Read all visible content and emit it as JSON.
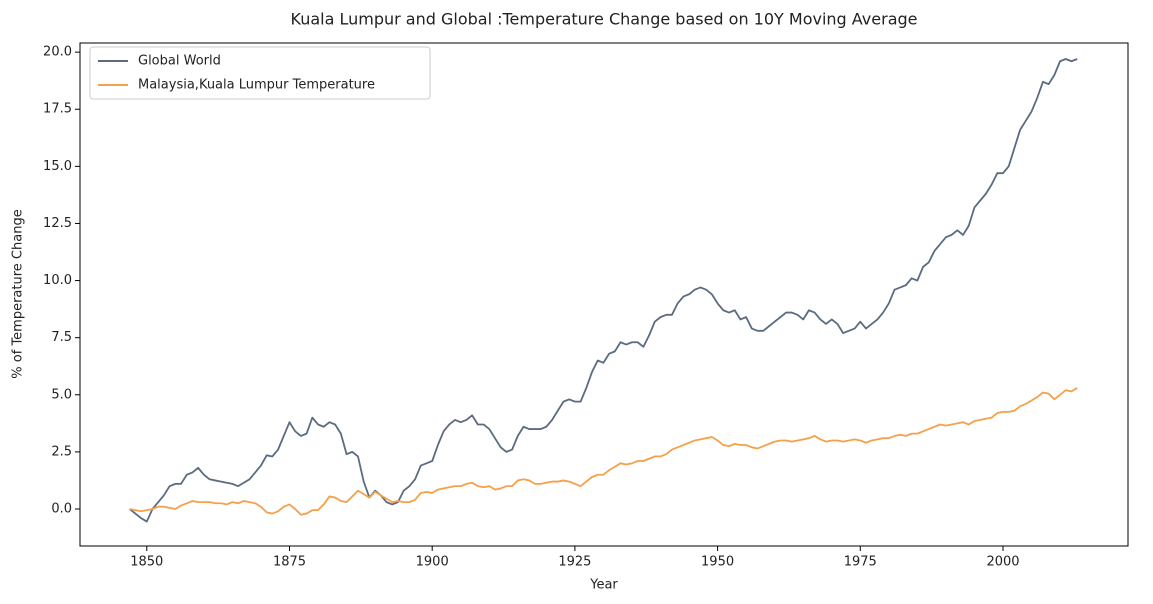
{
  "chart_data": {
    "type": "line",
    "title": "Kuala Lumpur and Global :Temperature Change based on 10Y Moving Average",
    "xlabel": "Year",
    "ylabel": "% of Temperature Change",
    "xlim": [
      1838.3,
      2021.9
    ],
    "ylim": [
      -1.62,
      20.4
    ],
    "xticks": [
      1850,
      1875,
      1900,
      1925,
      1950,
      1975,
      2000
    ],
    "yticks": [
      {
        "value": 0,
        "label": "0.0"
      },
      {
        "value": 2.5,
        "label": "2.5"
      },
      {
        "value": 5,
        "label": "5.0"
      },
      {
        "value": 7.5,
        "label": "7.5"
      },
      {
        "value": 10,
        "label": "10.0"
      },
      {
        "value": 12.5,
        "label": "12.5"
      },
      {
        "value": 15,
        "label": "15.0"
      },
      {
        "value": 17.5,
        "label": "17.5"
      },
      {
        "value": 20,
        "label": "20.0"
      }
    ],
    "grid": false,
    "legend": "upper left",
    "x": [
      1847,
      1848,
      1849,
      1850,
      1851,
      1852,
      1853,
      1854,
      1855,
      1856,
      1857,
      1858,
      1859,
      1860,
      1861,
      1862,
      1863,
      1864,
      1865,
      1866,
      1867,
      1868,
      1869,
      1870,
      1871,
      1872,
      1873,
      1874,
      1875,
      1876,
      1877,
      1878,
      1879,
      1880,
      1881,
      1882,
      1883,
      1884,
      1885,
      1886,
      1887,
      1888,
      1889,
      1890,
      1891,
      1892,
      1893,
      1894,
      1895,
      1896,
      1897,
      1898,
      1899,
      1900,
      1901,
      1902,
      1903,
      1904,
      1905,
      1906,
      1907,
      1908,
      1909,
      1910,
      1911,
      1912,
      1913,
      1914,
      1915,
      1916,
      1917,
      1918,
      1919,
      1920,
      1921,
      1922,
      1923,
      1924,
      1925,
      1926,
      1927,
      1928,
      1929,
      1930,
      1931,
      1932,
      1933,
      1934,
      1935,
      1936,
      1937,
      1938,
      1939,
      1940,
      1941,
      1942,
      1943,
      1944,
      1945,
      1946,
      1947,
      1948,
      1949,
      1950,
      1951,
      1952,
      1953,
      1954,
      1955,
      1956,
      1957,
      1958,
      1959,
      1960,
      1961,
      1962,
      1963,
      1964,
      1965,
      1966,
      1967,
      1968,
      1969,
      1970,
      1971,
      1972,
      1973,
      1974,
      1975,
      1976,
      1977,
      1978,
      1979,
      1980,
      1981,
      1982,
      1983,
      1984,
      1985,
      1986,
      1987,
      1988,
      1989,
      1990,
      1991,
      1992,
      1993,
      1994,
      1995,
      1996,
      1997,
      1998,
      1999,
      2000,
      2001,
      2002,
      2003,
      2004,
      2005,
      2006,
      2007,
      2008,
      2009,
      2010,
      2011,
      2012,
      2013
    ],
    "series": [
      {
        "name": "Global World",
        "color": "#5b6b80",
        "values": [
          0.0,
          -0.2,
          -0.4,
          -0.55,
          0.0,
          0.3,
          0.6,
          1.0,
          1.1,
          1.1,
          1.5,
          1.6,
          1.8,
          1.5,
          1.3,
          1.25,
          1.2,
          1.15,
          1.1,
          1.0,
          1.15,
          1.3,
          1.6,
          1.9,
          2.35,
          2.3,
          2.6,
          3.2,
          3.8,
          3.4,
          3.2,
          3.3,
          4.0,
          3.7,
          3.6,
          3.8,
          3.7,
          3.3,
          2.4,
          2.5,
          2.3,
          1.2,
          0.5,
          0.8,
          0.6,
          0.3,
          0.2,
          0.3,
          0.8,
          1.0,
          1.3,
          1.9,
          2.0,
          2.1,
          2.8,
          3.4,
          3.7,
          3.9,
          3.8,
          3.9,
          4.1,
          3.7,
          3.7,
          3.5,
          3.1,
          2.7,
          2.5,
          2.6,
          3.2,
          3.6,
          3.5,
          3.5,
          3.5,
          3.6,
          3.9,
          4.3,
          4.7,
          4.8,
          4.7,
          4.7,
          5.3,
          6.0,
          6.5,
          6.4,
          6.8,
          6.9,
          7.3,
          7.2,
          7.3,
          7.3,
          7.1,
          7.6,
          8.2,
          8.4,
          8.5,
          8.5,
          9.0,
          9.3,
          9.4,
          9.6,
          9.7,
          9.6,
          9.4,
          9.0,
          8.7,
          8.6,
          8.7,
          8.3,
          8.4,
          7.9,
          7.8,
          7.8,
          8.0,
          8.2,
          8.4,
          8.6,
          8.6,
          8.5,
          8.3,
          8.7,
          8.6,
          8.3,
          8.1,
          8.3,
          8.1,
          7.7,
          7.8,
          7.9,
          8.2,
          7.9,
          8.1,
          8.3,
          8.6,
          9.0,
          9.6,
          9.7,
          9.8,
          10.1,
          10.0,
          10.6,
          10.8,
          11.3,
          11.6,
          11.9,
          12.0,
          12.2,
          12.0,
          12.4,
          13.2,
          13.5,
          13.8,
          14.2,
          14.7,
          14.7,
          15.0,
          15.8,
          16.6,
          17.0,
          17.4,
          18.0,
          18.7,
          18.6,
          19.0,
          19.6,
          19.7,
          19.6,
          19.7
        ]
      },
      {
        "name": "Malaysia,Kuala Lumpur Temperature",
        "color": "#f5a04a",
        "values": [
          0.0,
          -0.05,
          -0.1,
          -0.05,
          0.0,
          0.1,
          0.1,
          0.05,
          0.0,
          0.15,
          0.25,
          0.35,
          0.3,
          0.3,
          0.3,
          0.25,
          0.25,
          0.2,
          0.3,
          0.25,
          0.35,
          0.3,
          0.25,
          0.1,
          -0.15,
          -0.2,
          -0.1,
          0.1,
          0.2,
          0.0,
          -0.25,
          -0.2,
          -0.05,
          -0.05,
          0.2,
          0.55,
          0.5,
          0.35,
          0.3,
          0.55,
          0.8,
          0.65,
          0.5,
          0.75,
          0.6,
          0.45,
          0.3,
          0.35,
          0.3,
          0.3,
          0.4,
          0.7,
          0.75,
          0.7,
          0.85,
          0.9,
          0.95,
          1.0,
          1.0,
          1.1,
          1.15,
          1.0,
          0.95,
          1.0,
          0.85,
          0.9,
          1.0,
          1.0,
          1.25,
          1.3,
          1.25,
          1.1,
          1.1,
          1.15,
          1.2,
          1.2,
          1.25,
          1.2,
          1.1,
          1.0,
          1.2,
          1.4,
          1.5,
          1.5,
          1.7,
          1.85,
          2.0,
          1.95,
          2.0,
          2.1,
          2.1,
          2.2,
          2.3,
          2.3,
          2.4,
          2.6,
          2.7,
          2.8,
          2.9,
          3.0,
          3.05,
          3.1,
          3.15,
          3.0,
          2.8,
          2.75,
          2.85,
          2.8,
          2.8,
          2.7,
          2.65,
          2.75,
          2.85,
          2.95,
          3.0,
          3.0,
          2.95,
          3.0,
          3.05,
          3.1,
          3.2,
          3.05,
          2.95,
          3.0,
          3.0,
          2.95,
          3.0,
          3.05,
          3.0,
          2.9,
          3.0,
          3.05,
          3.1,
          3.1,
          3.2,
          3.25,
          3.2,
          3.3,
          3.3,
          3.4,
          3.5,
          3.6,
          3.7,
          3.65,
          3.7,
          3.75,
          3.8,
          3.7,
          3.85,
          3.9,
          3.95,
          4.0,
          4.2,
          4.25,
          4.25,
          4.3,
          4.5,
          4.6,
          4.75,
          4.9,
          5.1,
          5.05,
          4.8,
          5.0,
          5.2,
          5.15,
          5.3
        ]
      }
    ]
  }
}
